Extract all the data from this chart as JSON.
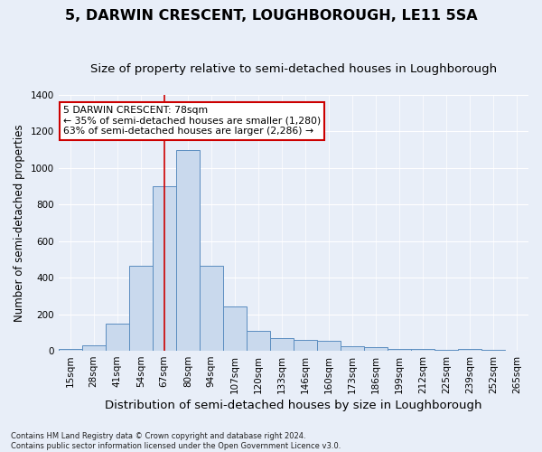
{
  "title": "5, DARWIN CRESCENT, LOUGHBOROUGH, LE11 5SA",
  "subtitle": "Size of property relative to semi-detached houses in Loughborough",
  "xlabel": "Distribution of semi-detached houses by size in Loughborough",
  "ylabel": "Number of semi-detached properties",
  "annotation_title": "5 DARWIN CRESCENT: 78sqm",
  "annotation_line1": "← 35% of semi-detached houses are smaller (1,280)",
  "annotation_line2": "63% of semi-detached houses are larger (2,286) →",
  "footnote1": "Contains HM Land Registry data © Crown copyright and database right 2024.",
  "footnote2": "Contains public sector information licensed under the Open Government Licence v3.0.",
  "property_size": 78,
  "bar_labels": [
    "15sqm",
    "28sqm",
    "41sqm",
    "54sqm",
    "67sqm",
    "80sqm",
    "94sqm",
    "107sqm",
    "120sqm",
    "133sqm",
    "146sqm",
    "160sqm",
    "173sqm",
    "186sqm",
    "199sqm",
    "212sqm",
    "225sqm",
    "239sqm",
    "252sqm",
    "265sqm"
  ],
  "bar_values": [
    10,
    30,
    150,
    465,
    900,
    1100,
    465,
    245,
    110,
    70,
    60,
    55,
    25,
    20,
    10,
    10,
    5,
    10,
    5,
    2
  ],
  "bar_color": "#c9d9ed",
  "bar_edge_color": "#5b8dc0",
  "vline_color": "#cc0000",
  "vline_x": 4.5,
  "ylim": [
    0,
    1400
  ],
  "yticks": [
    0,
    200,
    400,
    600,
    800,
    1000,
    1200,
    1400
  ],
  "annotation_box_color": "#ffffff",
  "annotation_box_edge": "#cc0000",
  "bg_color": "#e8eef8",
  "plot_bg_color": "#e8eef8",
  "title_fontsize": 11.5,
  "subtitle_fontsize": 9.5,
  "xlabel_fontsize": 9.5,
  "ylabel_fontsize": 8.5,
  "tick_fontsize": 7.5,
  "annotation_fontsize": 7.8,
  "footnote_fontsize": 6.0
}
